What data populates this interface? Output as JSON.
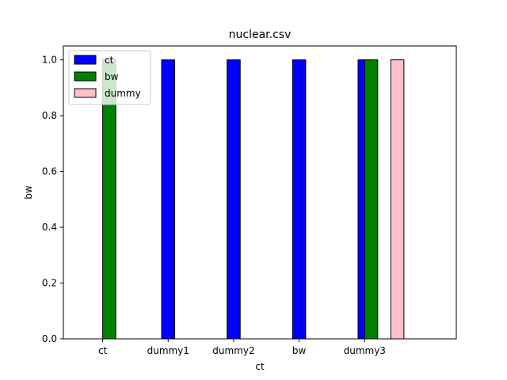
{
  "chart_data": {
    "type": "bar",
    "title": "nuclear.csv",
    "xlabel": "ct",
    "ylabel": "bw",
    "ylim": [
      0,
      1.05
    ],
    "yticks": [
      "0.0",
      "0.2",
      "0.4",
      "0.6",
      "0.8",
      "1.0"
    ],
    "categories": [
      "ct",
      "dummy1",
      "dummy2",
      "bw",
      "dummy3"
    ],
    "series": [
      {
        "name": "ct",
        "color": "#0000ff",
        "values": [
          0,
          1,
          1,
          1,
          1
        ]
      },
      {
        "name": "bw",
        "color": "#008000",
        "values": [
          1,
          0,
          0,
          0,
          1
        ]
      },
      {
        "name": "dummy",
        "color": "#ffc0cb",
        "values": [
          0,
          0,
          0,
          0,
          1
        ]
      }
    ],
    "legend": "top-left",
    "grid": false
  }
}
